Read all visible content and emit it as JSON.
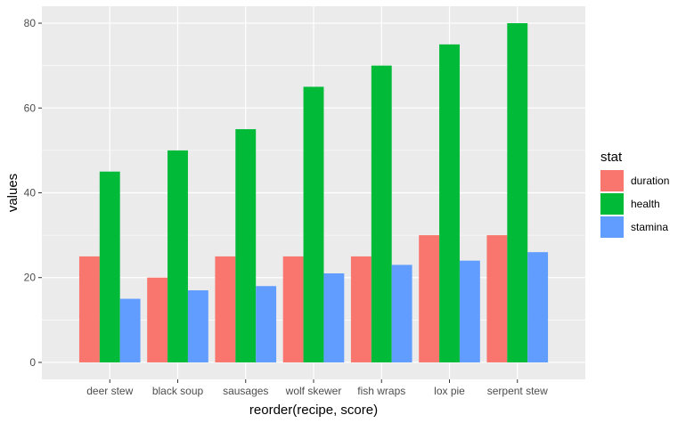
{
  "chart_data": {
    "type": "bar",
    "title": "",
    "xlabel": "reorder(recipe, score)",
    "ylabel": "values",
    "categories": [
      "deer stew",
      "black soup",
      "sausages",
      "wolf skewer",
      "fish wraps",
      "lox pie",
      "serpent stew"
    ],
    "series": [
      {
        "name": "duration",
        "color": "#F8766D",
        "values": [
          25,
          20,
          25,
          25,
          25,
          30,
          30
        ]
      },
      {
        "name": "health",
        "color": "#00BA38",
        "values": [
          45,
          50,
          55,
          65,
          70,
          75,
          80
        ]
      },
      {
        "name": "stamina",
        "color": "#619CFF",
        "values": [
          15,
          17,
          18,
          21,
          23,
          24,
          26
        ]
      }
    ],
    "ylim": [
      -4,
      84
    ],
    "yticks": [
      0,
      20,
      40,
      60,
      80
    ],
    "grid": true,
    "panel_background": "#EBEBEB",
    "legend": {
      "title": "stat",
      "position": "right"
    }
  }
}
